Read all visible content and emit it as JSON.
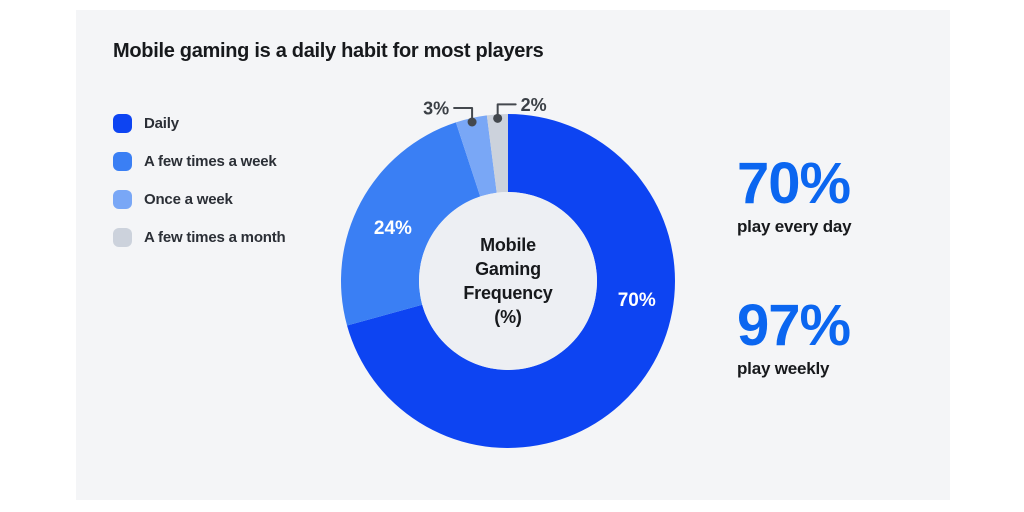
{
  "title": "Mobile gaming is a daily habit for most players",
  "legend": {
    "position": "left",
    "items": [
      {
        "label": "Daily",
        "color": "#0d44f2"
      },
      {
        "label": "A few times a week",
        "color": "#3a7ff4"
      },
      {
        "label": "Once a week",
        "color": "#79a7f6"
      },
      {
        "label": "A few times a month",
        "color": "#ccd2dc"
      }
    ]
  },
  "chart_data": {
    "type": "pie",
    "subtype": "donut",
    "title": "Mobile gaming is a daily habit for most players",
    "categories": [
      "Daily",
      "A few times a week",
      "Once a week",
      "A few times a month"
    ],
    "values": [
      70,
      24,
      3,
      2
    ],
    "colors": [
      "#0d44f2",
      "#3a7ff4",
      "#79a7f6",
      "#ccd2dc"
    ],
    "unit": "%",
    "start_angle_deg": 0,
    "direction": "clockwise",
    "legend_position": "left",
    "center_label_lines": [
      "Mobile",
      "Gaming",
      "Frequency",
      "(%)"
    ],
    "label_hints": [
      {
        "placement": "inside",
        "angle_deg": 98,
        "radius": 130
      },
      {
        "placement": "inside",
        "angle_deg": 295,
        "radius": 127
      },
      {
        "placement": "callout-left"
      },
      {
        "placement": "callout-right"
      }
    ]
  },
  "stats": [
    {
      "value": "70%",
      "caption": "play every day"
    },
    {
      "value": "97%",
      "caption": "play weekly"
    }
  ],
  "colors": {
    "page_bg": "#ffffff",
    "card_bg": "#f4f5f7",
    "title_text": "#17191c",
    "legend_text": "#2b2f36",
    "stat_value": "#0b66f0",
    "stat_caption": "#17191c",
    "donut_hole": "#edeff3",
    "inside_label_text": "#ffffff",
    "callout": "#43484e"
  }
}
